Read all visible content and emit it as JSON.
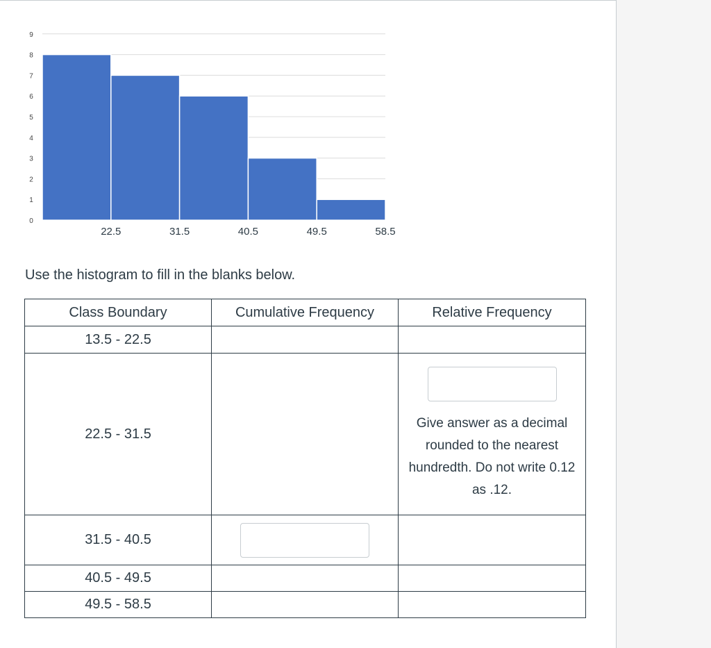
{
  "chart_data": {
    "type": "bar",
    "categories": [
      "13.5 - 22.5",
      "22.5 - 31.5",
      "31.5 - 40.5",
      "40.5 - 49.5",
      "49.5 - 58.5"
    ],
    "values": [
      8,
      7,
      6,
      3,
      1
    ],
    "x_tick_labels": [
      "22.5",
      "31.5",
      "40.5",
      "49.5",
      "58.5"
    ],
    "y_ticks": [
      0,
      1,
      2,
      3,
      4,
      5,
      6,
      7,
      8,
      9
    ],
    "ylim": [
      0,
      9
    ],
    "grid": true,
    "bar_color": "#4472c4"
  },
  "instructions": "Use the histogram to fill in the blanks below.",
  "table": {
    "headers": [
      "Class Boundary",
      "Cumulative Frequency",
      "Relative Frequency"
    ],
    "rows": [
      {
        "boundary": "13.5 - 22.5"
      },
      {
        "boundary": "22.5 - 31.5",
        "hint": "Give answer as a decimal rounded to the nearest hundredth. Do not write 0.12 as .12."
      },
      {
        "boundary": "31.5 - 40.5"
      },
      {
        "boundary": "40.5 - 49.5"
      },
      {
        "boundary": "49.5 - 58.5"
      }
    ]
  }
}
